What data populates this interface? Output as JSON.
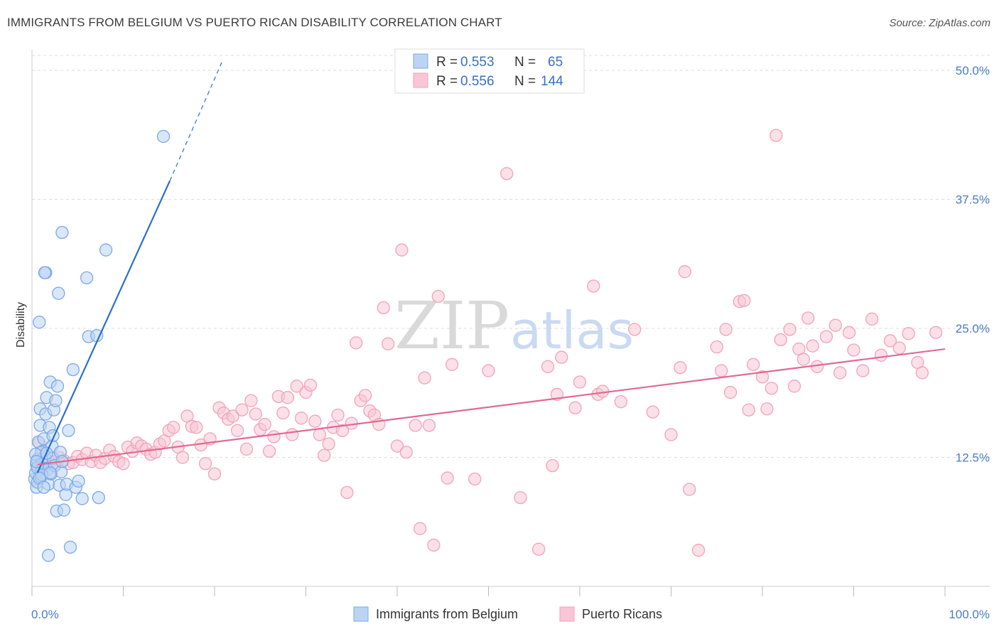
{
  "title": "IMMIGRANTS FROM BELGIUM VS PUERTO RICAN DISABILITY CORRELATION CHART",
  "source": "Source: ZipAtlas.com",
  "watermark": {
    "zip": "ZIP",
    "atlas": "atlas"
  },
  "colors": {
    "blue": "#7aaae6",
    "blue_fill": "#bcd4f3",
    "blue_line": "#2b6fcc",
    "pink": "#f2a2bb",
    "pink_fill": "#f8c6d6",
    "pink_line": "#e06a93",
    "tick": "#4a7cc7",
    "grid": "#dddddd"
  },
  "legend": {
    "rows": [
      {
        "r_label": "R =",
        "r_value": "0.553",
        "n_label": "N =",
        "n_value": "65"
      },
      {
        "r_label": "R =",
        "r_value": "0.556",
        "n_label": "N =",
        "n_value": "144"
      }
    ]
  },
  "chart_data": {
    "type": "scatter",
    "title": "IMMIGRANTS FROM BELGIUM VS PUERTO RICAN DISABILITY CORRELATION CHART",
    "xlabel": "",
    "ylabel": "Disability",
    "xlim": [
      0,
      100
    ],
    "ylim": [
      0,
      52
    ],
    "x_ticks": [
      0,
      10,
      20,
      30,
      40,
      50,
      60,
      70,
      80,
      90,
      100
    ],
    "x_tick_labels": {
      "0": "0.0%",
      "100": "100.0%"
    },
    "y_ticks": [
      12.5,
      25.0,
      37.5,
      50.0
    ],
    "y_tick_labels": [
      "12.5%",
      "25.0%",
      "37.5%",
      "50.0%"
    ],
    "grid": "horizontal dashed",
    "legend_position": "top-center",
    "series": [
      {
        "name": "Immigrants from Belgium",
        "color": "#7aaae6",
        "trend": {
          "x": [
            0.6,
            15.1
          ],
          "y": [
            11.0,
            39.3
          ],
          "dashed_to": [
            20.8,
            50.8
          ]
        },
        "points": [
          [
            0.3,
            10.4
          ],
          [
            0.4,
            11.0
          ],
          [
            0.5,
            11.8
          ],
          [
            0.5,
            9.6
          ],
          [
            0.6,
            12.3
          ],
          [
            0.6,
            10.1
          ],
          [
            0.7,
            14.0
          ],
          [
            0.8,
            25.6
          ],
          [
            0.9,
            17.2
          ],
          [
            0.9,
            15.6
          ],
          [
            1.0,
            11.2
          ],
          [
            1.0,
            10.6
          ],
          [
            1.1,
            12.0
          ],
          [
            1.2,
            11.4
          ],
          [
            1.2,
            13.1
          ],
          [
            1.3,
            14.3
          ],
          [
            1.4,
            12.6
          ],
          [
            1.5,
            16.7
          ],
          [
            1.6,
            18.3
          ],
          [
            1.7,
            11.3
          ],
          [
            1.8,
            9.9
          ],
          [
            1.9,
            15.4
          ],
          [
            2.0,
            19.8
          ],
          [
            2.1,
            10.9
          ],
          [
            2.2,
            13.6
          ],
          [
            2.3,
            12.4
          ],
          [
            2.4,
            17.1
          ],
          [
            2.5,
            11.7
          ],
          [
            2.6,
            18.0
          ],
          [
            2.7,
            7.3
          ],
          [
            2.8,
            19.4
          ],
          [
            2.9,
            28.4
          ],
          [
            3.0,
            9.8
          ],
          [
            3.1,
            13.0
          ],
          [
            3.2,
            11.1
          ],
          [
            3.3,
            12.1
          ],
          [
            3.5,
            7.4
          ],
          [
            3.7,
            8.9
          ],
          [
            3.8,
            9.9
          ],
          [
            4.0,
            15.1
          ],
          [
            4.2,
            3.8
          ],
          [
            4.5,
            21.0
          ],
          [
            4.8,
            9.6
          ],
          [
            5.1,
            10.2
          ],
          [
            5.5,
            8.5
          ],
          [
            6.0,
            29.9
          ],
          [
            6.2,
            24.2
          ],
          [
            7.1,
            24.3
          ],
          [
            7.3,
            8.6
          ],
          [
            8.1,
            32.6
          ],
          [
            1.5,
            30.4
          ],
          [
            1.4,
            30.4
          ],
          [
            1.8,
            3.0
          ],
          [
            3.3,
            34.3
          ],
          [
            14.4,
            43.6
          ],
          [
            1.0,
            13.0
          ],
          [
            0.4,
            12.8
          ],
          [
            0.6,
            11.5
          ],
          [
            1.1,
            10.8
          ],
          [
            1.6,
            12.9
          ],
          [
            2.3,
            14.6
          ],
          [
            0.8,
            10.5
          ],
          [
            1.3,
            9.6
          ],
          [
            2.0,
            11.0
          ],
          [
            0.5,
            12.1
          ]
        ]
      },
      {
        "name": "Puerto Ricans",
        "color": "#f2a2bb",
        "trend": {
          "x": [
            0.6,
            100
          ],
          "y": [
            11.8,
            23.0
          ]
        },
        "points": [
          [
            0.8,
            13.9
          ],
          [
            1.5,
            12.4
          ],
          [
            2.0,
            12.1
          ],
          [
            2.5,
            11.8
          ],
          [
            3.0,
            12.5
          ],
          [
            3.5,
            12.2
          ],
          [
            4.0,
            11.9
          ],
          [
            4.5,
            12.0
          ],
          [
            5.0,
            12.6
          ],
          [
            5.5,
            12.3
          ],
          [
            6.0,
            12.9
          ],
          [
            6.5,
            12.1
          ],
          [
            7.0,
            12.7
          ],
          [
            7.5,
            12.0
          ],
          [
            8.0,
            12.4
          ],
          [
            8.5,
            13.2
          ],
          [
            9.0,
            12.6
          ],
          [
            9.5,
            12.1
          ],
          [
            10.0,
            11.9
          ],
          [
            10.5,
            13.5
          ],
          [
            11.0,
            13.1
          ],
          [
            11.5,
            13.9
          ],
          [
            12.0,
            13.6
          ],
          [
            12.5,
            13.3
          ],
          [
            13.0,
            12.8
          ],
          [
            13.5,
            13.0
          ],
          [
            14.0,
            13.8
          ],
          [
            14.5,
            14.1
          ],
          [
            15.0,
            15.1
          ],
          [
            15.5,
            15.4
          ],
          [
            16.0,
            13.5
          ],
          [
            16.5,
            12.5
          ],
          [
            17.0,
            16.5
          ],
          [
            17.5,
            15.5
          ],
          [
            18.0,
            15.4
          ],
          [
            18.5,
            13.7
          ],
          [
            19.0,
            11.9
          ],
          [
            19.5,
            14.3
          ],
          [
            20.0,
            10.9
          ],
          [
            20.5,
            17.3
          ],
          [
            21.0,
            16.8
          ],
          [
            21.5,
            16.2
          ],
          [
            22.0,
            16.5
          ],
          [
            22.5,
            15.1
          ],
          [
            23.0,
            17.1
          ],
          [
            23.5,
            13.3
          ],
          [
            24.0,
            18.0
          ],
          [
            24.5,
            16.7
          ],
          [
            25.0,
            15.2
          ],
          [
            25.5,
            15.7
          ],
          [
            26.0,
            13.1
          ],
          [
            26.5,
            14.5
          ],
          [
            27.0,
            18.4
          ],
          [
            27.5,
            16.8
          ],
          [
            28.0,
            18.3
          ],
          [
            28.5,
            14.7
          ],
          [
            29.0,
            19.4
          ],
          [
            29.5,
            16.3
          ],
          [
            30.0,
            18.8
          ],
          [
            30.5,
            19.5
          ],
          [
            31.0,
            16.0
          ],
          [
            31.5,
            14.7
          ],
          [
            32.0,
            12.7
          ],
          [
            32.5,
            13.8
          ],
          [
            33.0,
            15.4
          ],
          [
            33.5,
            16.6
          ],
          [
            34.0,
            15.1
          ],
          [
            34.5,
            9.1
          ],
          [
            35.0,
            15.8
          ],
          [
            35.5,
            23.6
          ],
          [
            36.0,
            18.0
          ],
          [
            36.5,
            18.5
          ],
          [
            37.0,
            17.0
          ],
          [
            37.5,
            16.6
          ],
          [
            38.0,
            15.7
          ],
          [
            38.5,
            27.0
          ],
          [
            39.0,
            23.5
          ],
          [
            40.0,
            13.6
          ],
          [
            40.5,
            32.6
          ],
          [
            41.0,
            13.0
          ],
          [
            42.0,
            15.6
          ],
          [
            42.5,
            5.6
          ],
          [
            43.0,
            20.2
          ],
          [
            43.5,
            15.6
          ],
          [
            44.0,
            4.0
          ],
          [
            44.5,
            28.1
          ],
          [
            45.5,
            10.5
          ],
          [
            46.0,
            21.5
          ],
          [
            48.5,
            10.4
          ],
          [
            50.0,
            20.9
          ],
          [
            52.0,
            40.0
          ],
          [
            53.5,
            8.6
          ],
          [
            55.5,
            3.6
          ],
          [
            56.5,
            21.3
          ],
          [
            57.0,
            11.7
          ],
          [
            57.5,
            18.6
          ],
          [
            58.0,
            22.2
          ],
          [
            59.5,
            17.3
          ],
          [
            60.0,
            19.8
          ],
          [
            61.5,
            29.1
          ],
          [
            62.0,
            18.6
          ],
          [
            62.5,
            18.9
          ],
          [
            64.5,
            17.9
          ],
          [
            66.0,
            24.9
          ],
          [
            68.0,
            16.9
          ],
          [
            70.0,
            14.7
          ],
          [
            71.0,
            21.2
          ],
          [
            71.5,
            30.5
          ],
          [
            72.0,
            9.4
          ],
          [
            73.0,
            3.5
          ],
          [
            75.0,
            23.2
          ],
          [
            75.5,
            20.9
          ],
          [
            76.0,
            24.9
          ],
          [
            76.5,
            18.8
          ],
          [
            77.5,
            27.6
          ],
          [
            78.0,
            27.7
          ],
          [
            78.5,
            17.1
          ],
          [
            79.0,
            21.5
          ],
          [
            80.0,
            20.3
          ],
          [
            80.5,
            17.2
          ],
          [
            81.0,
            19.2
          ],
          [
            81.5,
            43.7
          ],
          [
            82.0,
            23.9
          ],
          [
            83.0,
            24.9
          ],
          [
            83.5,
            19.4
          ],
          [
            84.0,
            23.0
          ],
          [
            84.5,
            22.0
          ],
          [
            85.0,
            26.0
          ],
          [
            85.5,
            23.3
          ],
          [
            86.0,
            21.3
          ],
          [
            87.0,
            24.2
          ],
          [
            88.0,
            25.3
          ],
          [
            88.5,
            20.7
          ],
          [
            89.5,
            24.6
          ],
          [
            90.0,
            22.9
          ],
          [
            91.0,
            20.9
          ],
          [
            92.0,
            25.9
          ],
          [
            93.0,
            22.4
          ],
          [
            94.0,
            23.8
          ],
          [
            95.0,
            23.1
          ],
          [
            96.0,
            24.5
          ],
          [
            97.0,
            21.7
          ],
          [
            97.5,
            20.7
          ],
          [
            99.0,
            24.6
          ]
        ]
      }
    ]
  },
  "bottom_legend": {
    "items": [
      "Immigrants from Belgium",
      "Puerto Ricans"
    ]
  }
}
